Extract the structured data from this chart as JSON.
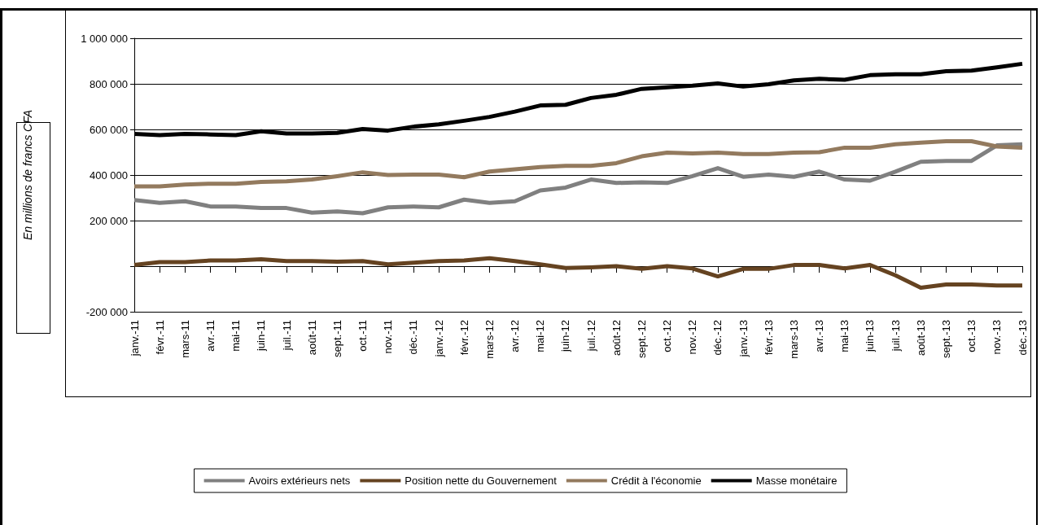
{
  "chart_data": {
    "type": "line",
    "ylabel": "En millions de francs CFA",
    "categories": [
      "janv.-11",
      "févr.-11",
      "mars-11",
      "avr.-11",
      "mai-11",
      "juin-11",
      "juil.-11",
      "août-11",
      "sept.-11",
      "oct.-11",
      "nov.-11",
      "déc.-11",
      "janv.-12",
      "févr.-12",
      "mars-12",
      "avr.-12",
      "mai-12",
      "juin-12",
      "juil.-12",
      "août-12",
      "sept.-12",
      "oct.-12",
      "nov.-12",
      "déc.-12",
      "janv.-13",
      "févr.-13",
      "mars-13",
      "avr.-13",
      "mai-13",
      "juin-13",
      "juil.-13",
      "août-13",
      "sept.-13",
      "oct.-13",
      "nov.-13",
      "déc.-13"
    ],
    "series": [
      {
        "name": "Avoirs extérieurs nets",
        "color": "#808080",
        "values": [
          290000,
          278000,
          285000,
          262000,
          262000,
          255000,
          255000,
          235000,
          240000,
          232000,
          258000,
          262000,
          258000,
          292000,
          278000,
          285000,
          332000,
          345000,
          380000,
          365000,
          368000,
          365000,
          395000,
          430000,
          392000,
          402000,
          392000,
          415000,
          380000,
          375000,
          415000,
          458000,
          462000,
          462000,
          530000,
          535000
        ]
      },
      {
        "name": "Position nette du Gouvernement",
        "color": "#654321",
        "values": [
          5000,
          18000,
          18000,
          25000,
          25000,
          30000,
          22000,
          22000,
          20000,
          22000,
          8000,
          15000,
          22000,
          25000,
          35000,
          22000,
          8000,
          -8000,
          -5000,
          0,
          -12000,
          0,
          -10000,
          -45000,
          -12000,
          -12000,
          5000,
          5000,
          -10000,
          5000,
          -40000,
          -95000,
          -80000,
          -80000,
          -85000,
          -85000
        ]
      },
      {
        "name": "Crédit à l'économie",
        "color": "#937a5e",
        "values": [
          350000,
          350000,
          358000,
          362000,
          362000,
          370000,
          372000,
          380000,
          395000,
          412000,
          400000,
          402000,
          402000,
          390000,
          415000,
          425000,
          435000,
          440000,
          440000,
          452000,
          482000,
          498000,
          495000,
          498000,
          492000,
          492000,
          498000,
          500000,
          520000,
          520000,
          535000,
          542000,
          548000,
          548000,
          525000,
          520000
        ]
      },
      {
        "name": "Masse monétaire",
        "color": "#000000",
        "values": [
          580000,
          575000,
          580000,
          578000,
          575000,
          592000,
          582000,
          582000,
          585000,
          602000,
          595000,
          612000,
          622000,
          638000,
          655000,
          678000,
          705000,
          708000,
          738000,
          752000,
          778000,
          785000,
          792000,
          802000,
          788000,
          798000,
          815000,
          822000,
          818000,
          838000,
          842000,
          842000,
          855000,
          858000,
          872000,
          888000
        ]
      }
    ],
    "ylim": [
      -200000,
      1000000
    ],
    "yticks": [
      {
        "value": -200000,
        "label": "-200 000"
      },
      {
        "value": 0,
        "label": null
      },
      {
        "value": 200000,
        "label": "200 000"
      },
      {
        "value": 400000,
        "label": "400 000"
      },
      {
        "value": 600000,
        "label": "600 000"
      },
      {
        "value": 800000,
        "label": "800 000"
      },
      {
        "value": 1000000,
        "label": "1 000 000"
      }
    ],
    "grid": "y",
    "legend": "bottom",
    "marker": "none",
    "line_style": "solid"
  }
}
